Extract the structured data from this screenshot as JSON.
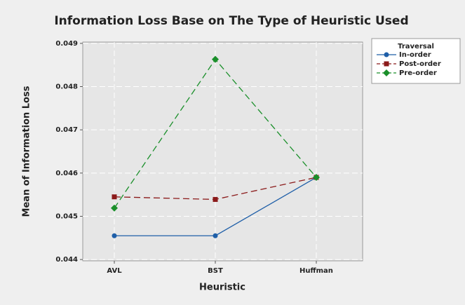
{
  "chart_data": {
    "type": "line",
    "title": "Information Loss Base on The Type of Heuristic Used",
    "x_label": "Heuristic",
    "y_label": "Mean of Information Loss",
    "categories": [
      "AVL",
      "BST",
      "Huffman"
    ],
    "legend_title": "Traversal",
    "legend": "right",
    "grid": true,
    "series": [
      {
        "name": "In-order",
        "color": "#1f5fa8",
        "marker": "circle",
        "dash": false,
        "values": [
          0.04455,
          0.04455,
          0.0459
        ]
      },
      {
        "name": "Post-order",
        "color": "#8b1a1a",
        "marker": "square",
        "dash": true,
        "values": [
          0.04545,
          0.04539,
          0.0459
        ]
      },
      {
        "name": "Pre-order",
        "color": "#1a8f2a",
        "marker": "diamond",
        "dash": true,
        "values": [
          0.04519,
          0.04863,
          0.0459
        ]
      }
    ],
    "ylim": [
      0.04397,
      0.04903
    ],
    "yticks": [
      0.044,
      0.045,
      0.046,
      0.047,
      0.048,
      0.049
    ]
  }
}
